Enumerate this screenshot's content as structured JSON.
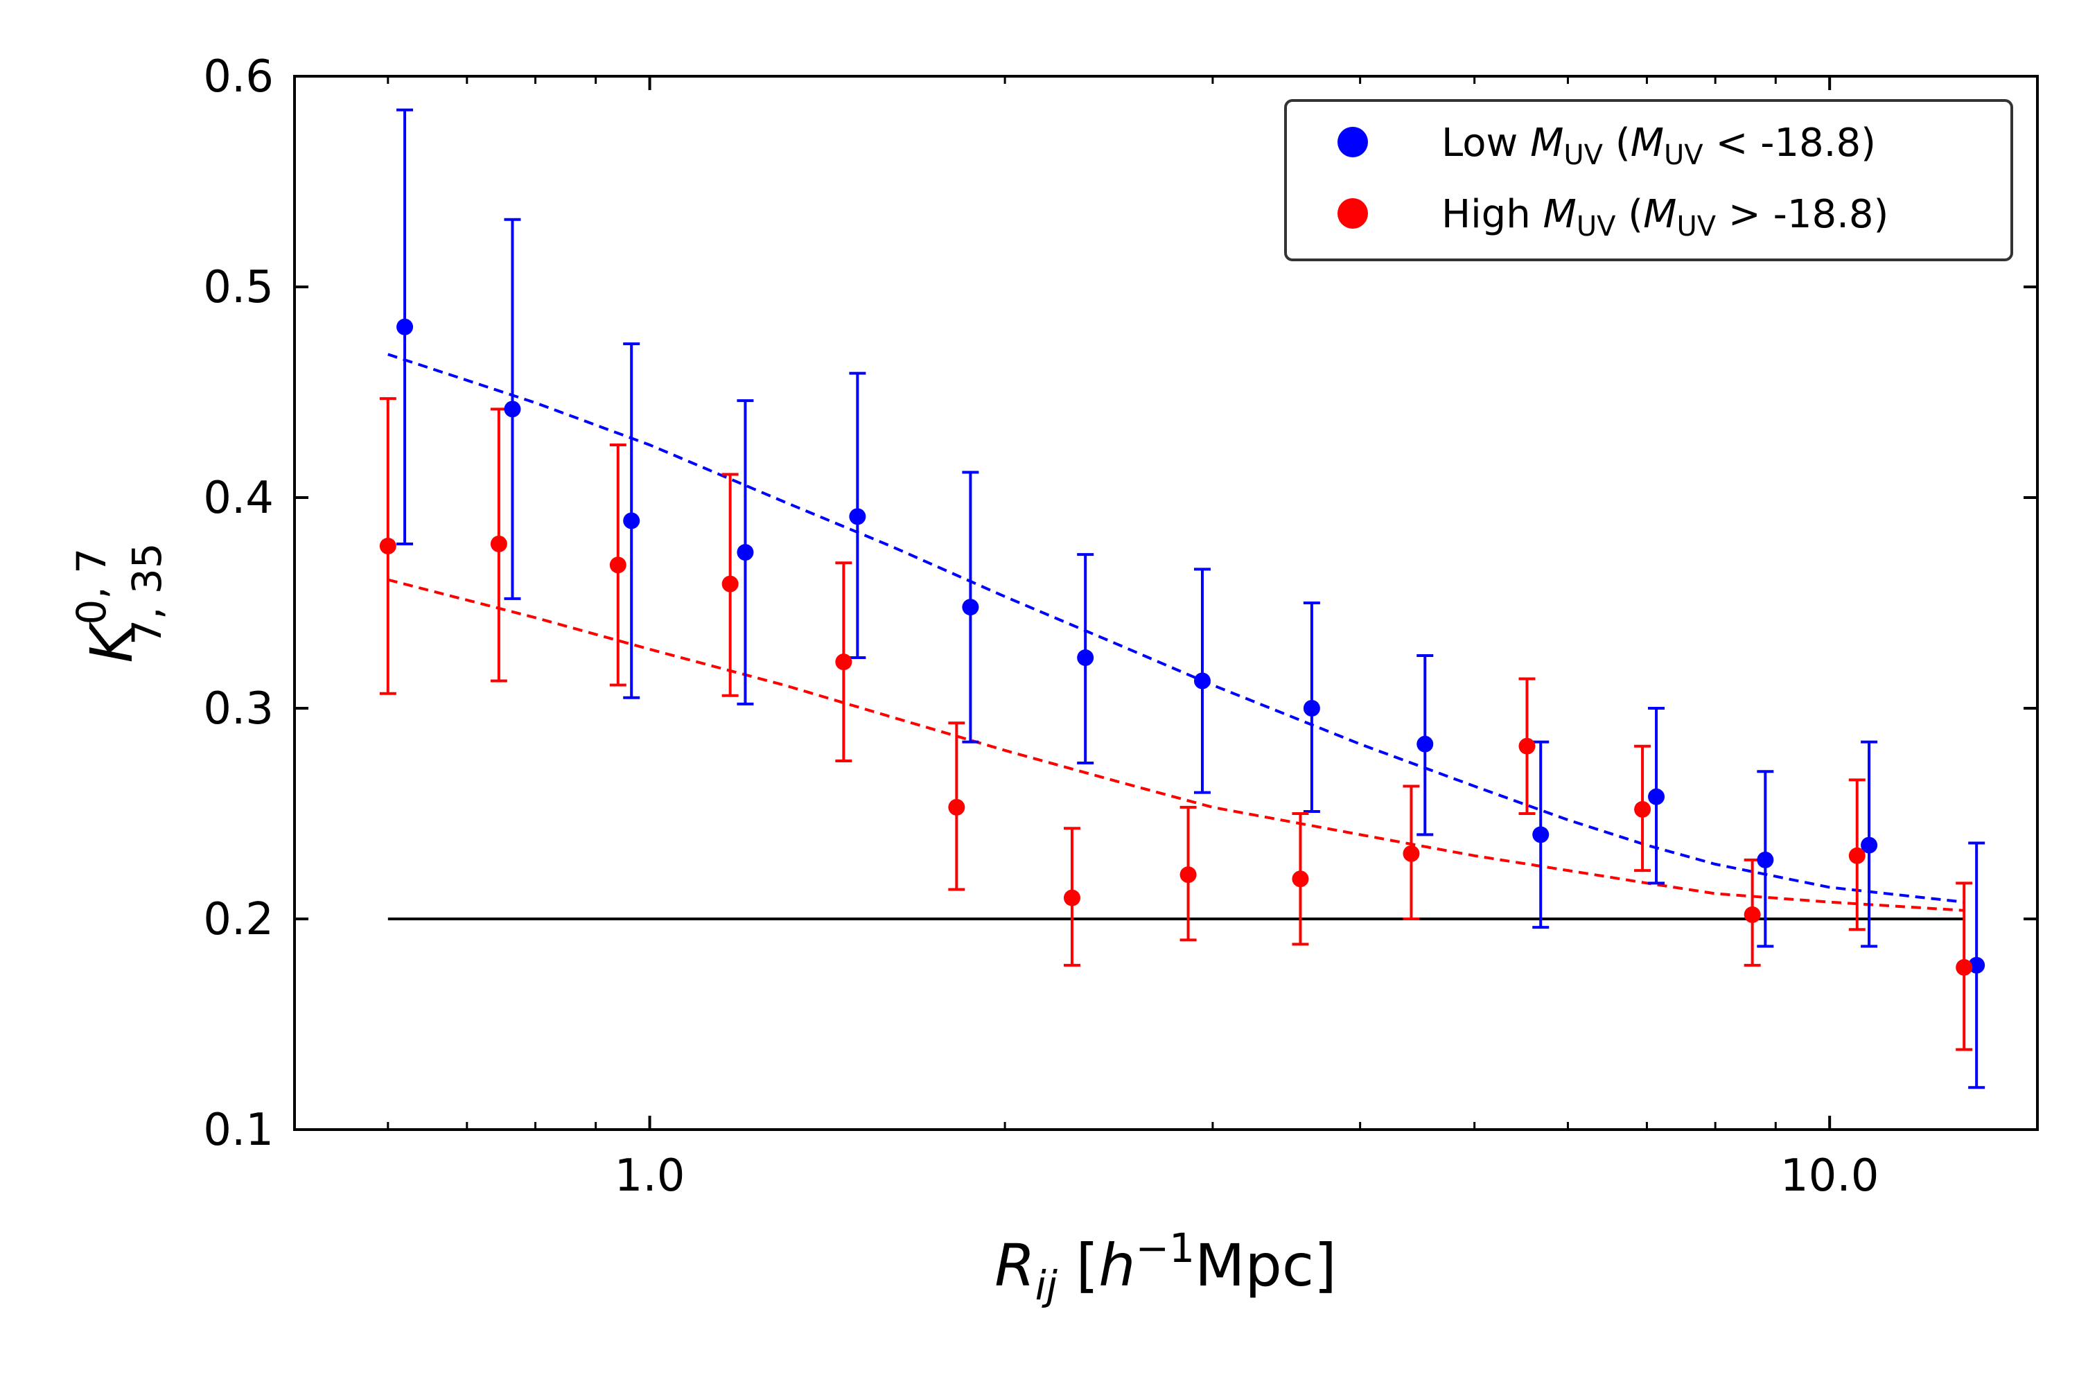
{
  "chart_data": {
    "type": "scatter",
    "x_scale": "log",
    "xlim": [
      0.5,
      15.0
    ],
    "ylim": [
      0.1,
      0.6
    ],
    "xlabel": {
      "main": "R",
      "sub": "ij",
      "pre_bracket": " [",
      "h": "h",
      "exp": "−1",
      "unit": "Mpc]"
    },
    "ylabel": {
      "main": "K",
      "sup": "0, 7",
      "sub": "7, 35"
    },
    "x_ticks": [
      {
        "value": 1.0,
        "label": "1.0"
      },
      {
        "value": 10.0,
        "label": "10.0"
      }
    ],
    "y_ticks": [
      {
        "value": 0.1,
        "label": "0.1"
      },
      {
        "value": 0.2,
        "label": "0.2"
      },
      {
        "value": 0.3,
        "label": "0.3"
      },
      {
        "value": 0.4,
        "label": "0.4"
      },
      {
        "value": 0.5,
        "label": "0.5"
      },
      {
        "value": 0.6,
        "label": "0.6"
      }
    ],
    "reference_line": {
      "y": 0.2,
      "x_range": [
        0.6,
        13.0
      ],
      "color": "#000000"
    },
    "series": [
      {
        "name": "low",
        "color": "#0000ff",
        "legend": {
          "pre": "Low ",
          "m": "M",
          "sub": "UV",
          "mid": " (",
          "m2": "M",
          "sub2": "UV",
          "post": " < -18.8)"
        },
        "x": [
          0.62,
          0.765,
          0.965,
          1.205,
          1.5,
          1.87,
          2.34,
          2.94,
          3.64,
          4.54,
          5.69,
          7.13,
          8.82,
          10.8,
          13.32
        ],
        "y": [
          0.481,
          0.442,
          0.389,
          0.374,
          0.391,
          0.348,
          0.324,
          0.313,
          0.3,
          0.283,
          0.24,
          0.258,
          0.228,
          0.235,
          0.178
        ],
        "yerr_low": [
          0.378,
          0.352,
          0.305,
          0.302,
          0.324,
          0.284,
          0.274,
          0.26,
          0.251,
          0.24,
          0.196,
          0.217,
          0.187,
          0.187,
          0.12
        ],
        "yerr_high": [
          0.584,
          0.532,
          0.473,
          0.446,
          0.459,
          0.412,
          0.373,
          0.366,
          0.35,
          0.325,
          0.284,
          0.3,
          0.27,
          0.284,
          0.236
        ],
        "fit": {
          "x": [
            0.6,
            0.8,
            1.0,
            1.3,
            1.6,
            2.0,
            2.5,
            3.0,
            4.0,
            5.0,
            6.0,
            7.0,
            8.0,
            10.0,
            13.0
          ],
          "y": [
            0.468,
            0.445,
            0.425,
            0.398,
            0.377,
            0.353,
            0.33,
            0.311,
            0.283,
            0.263,
            0.247,
            0.235,
            0.226,
            0.215,
            0.208
          ]
        }
      },
      {
        "name": "high",
        "color": "#ff0000",
        "legend": {
          "pre": "High ",
          "m": "M",
          "sub": "UV",
          "mid": " (",
          "m2": "M",
          "sub2": "UV",
          "post": " > -18.8)"
        },
        "x": [
          0.6,
          0.745,
          0.94,
          1.17,
          1.46,
          1.82,
          2.28,
          2.86,
          3.56,
          4.42,
          5.54,
          6.94,
          8.6,
          10.55,
          13.0
        ],
        "y": [
          0.377,
          0.378,
          0.368,
          0.359,
          0.322,
          0.253,
          0.21,
          0.221,
          0.219,
          0.231,
          0.282,
          0.252,
          0.202,
          0.23,
          0.177
        ],
        "yerr_low": [
          0.307,
          0.313,
          0.311,
          0.306,
          0.275,
          0.214,
          0.178,
          0.19,
          0.188,
          0.2,
          0.25,
          0.223,
          0.178,
          0.195,
          0.138
        ],
        "yerr_high": [
          0.447,
          0.442,
          0.425,
          0.411,
          0.369,
          0.293,
          0.243,
          0.253,
          0.25,
          0.263,
          0.314,
          0.282,
          0.228,
          0.266,
          0.217
        ],
        "fit": {
          "x": [
            0.6,
            0.8,
            1.0,
            1.3,
            1.6,
            2.0,
            2.5,
            3.0,
            4.0,
            5.0,
            6.0,
            7.0,
            8.0,
            10.0,
            13.0
          ],
          "y": [
            0.361,
            0.343,
            0.328,
            0.311,
            0.296,
            0.28,
            0.265,
            0.253,
            0.24,
            0.23,
            0.223,
            0.217,
            0.212,
            0.208,
            0.204
          ]
        }
      }
    ]
  }
}
